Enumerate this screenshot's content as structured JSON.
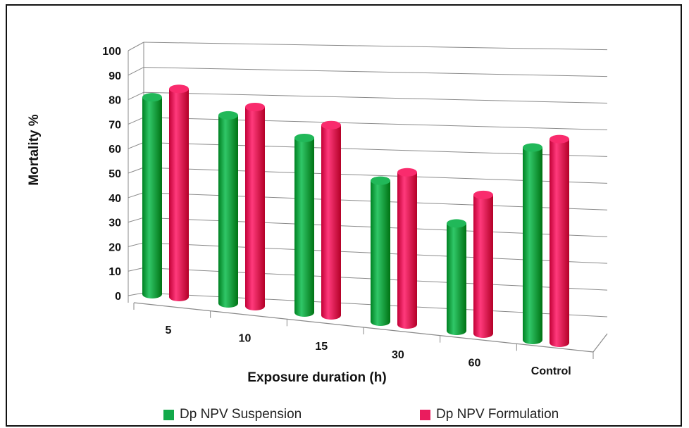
{
  "chart_data": {
    "type": "bar",
    "style": "3d-cylinder",
    "title": "",
    "xlabel": "Exposure duration (h)",
    "ylabel": "Mortality %",
    "ylim": [
      0,
      100
    ],
    "yticks": [
      "0",
      "10",
      "20",
      "30",
      "40",
      "50",
      "60",
      "70",
      "80",
      "90",
      "100"
    ],
    "categories": [
      "5",
      "10",
      "15",
      "30",
      "60",
      "Control"
    ],
    "series": [
      {
        "name": "Dp NPV Suspension",
        "color": "#12a94a",
        "values": [
          88,
          84,
          78,
          63,
          48,
          86
        ]
      },
      {
        "name": "Dp NPV Formulation",
        "color": "#ea1c5e",
        "values": [
          93,
          89,
          85,
          68,
          62,
          91
        ]
      }
    ],
    "grid": true,
    "legend_position": "bottom"
  }
}
